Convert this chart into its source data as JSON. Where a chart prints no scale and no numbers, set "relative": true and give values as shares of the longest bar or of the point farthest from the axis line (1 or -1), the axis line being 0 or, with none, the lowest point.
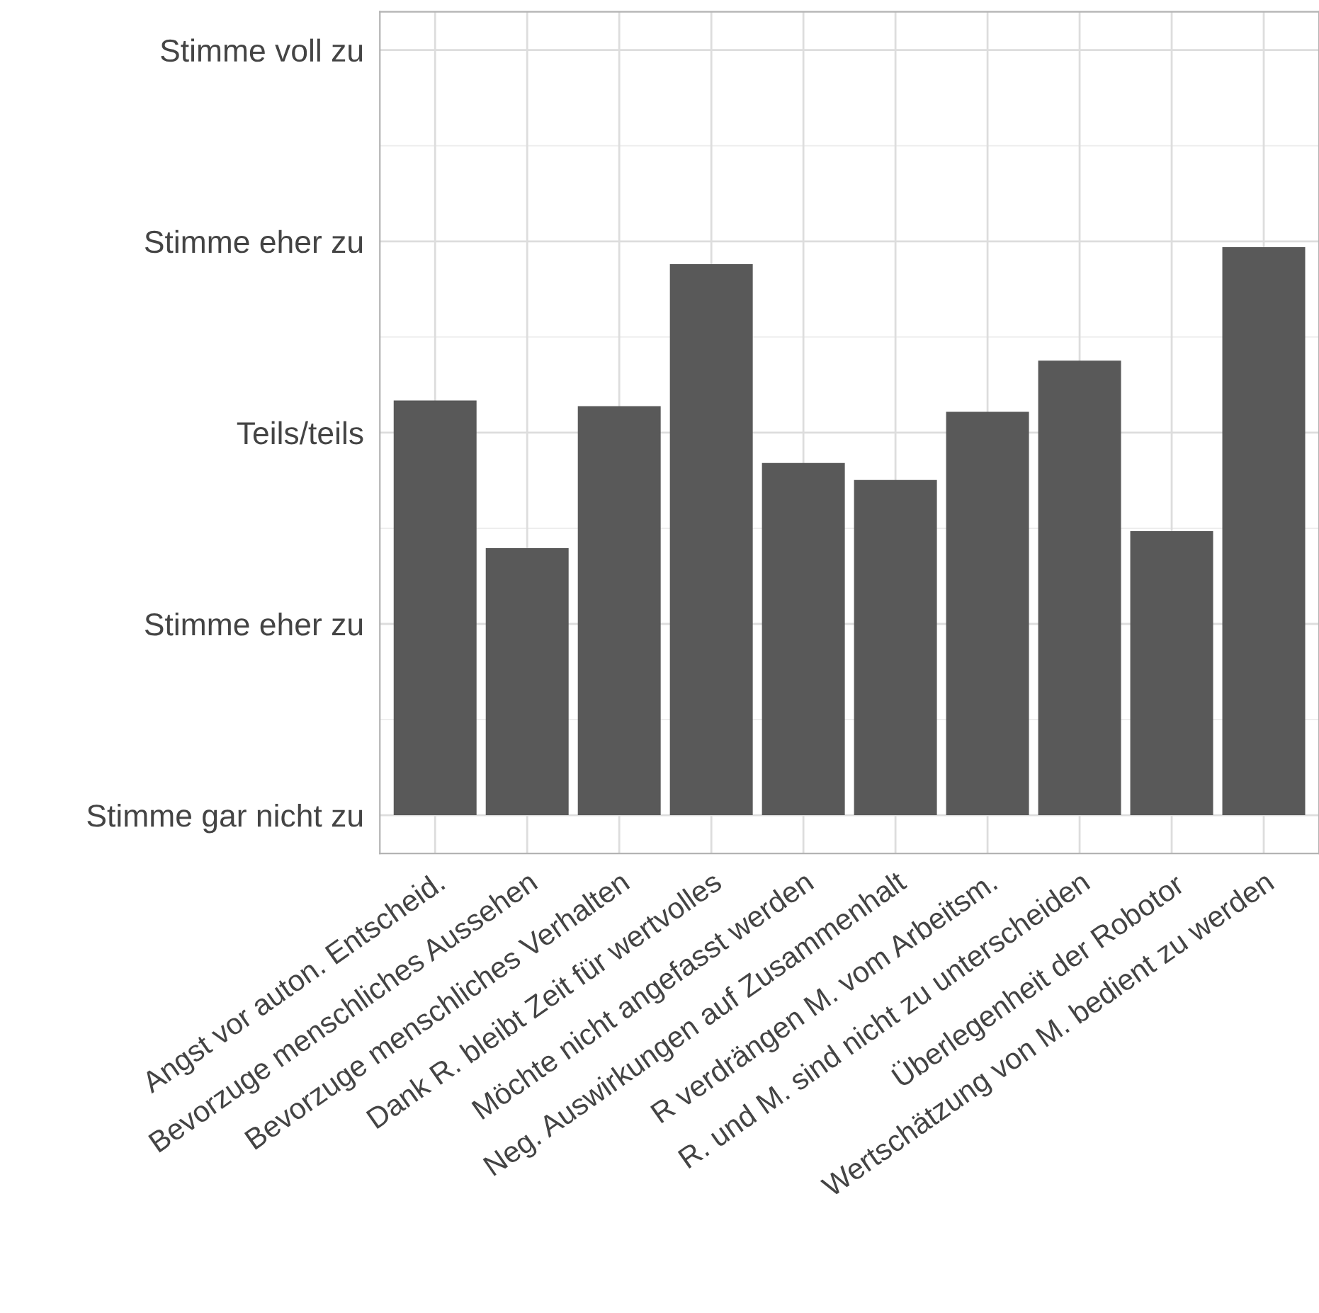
{
  "chart_data": {
    "type": "bar",
    "categories": [
      "Angst vor auton. Entscheid.",
      "Bevorzuge menschliches Aussehen",
      "Bevorzuge menschliches Verhalten",
      "Dank R. bleibt Zeit für wertvolles",
      "Möchte nicht angefasst werden",
      "Neg. Auswirkungen auf Zusammenhalt",
      "R verdrängen M. vom Arbeitsm.",
      "R. und M. sind nicht zu unterscheiden",
      "Überlegenheit der Robotor",
      "Wertschätzung von M. bedient zu werden"
    ],
    "values": [
      0.73,
      0.47,
      0.72,
      0.97,
      0.62,
      0.59,
      0.71,
      0.8,
      0.5,
      1
    ],
    "relative": true,
    "color": "#595959",
    "annotations": [
      "Stimme gar nicht zu",
      "Stimme eher zu",
      "Teils/teils",
      "Stimme eher zu",
      "Stimme voll zu"
    ],
    "grid": true
  }
}
